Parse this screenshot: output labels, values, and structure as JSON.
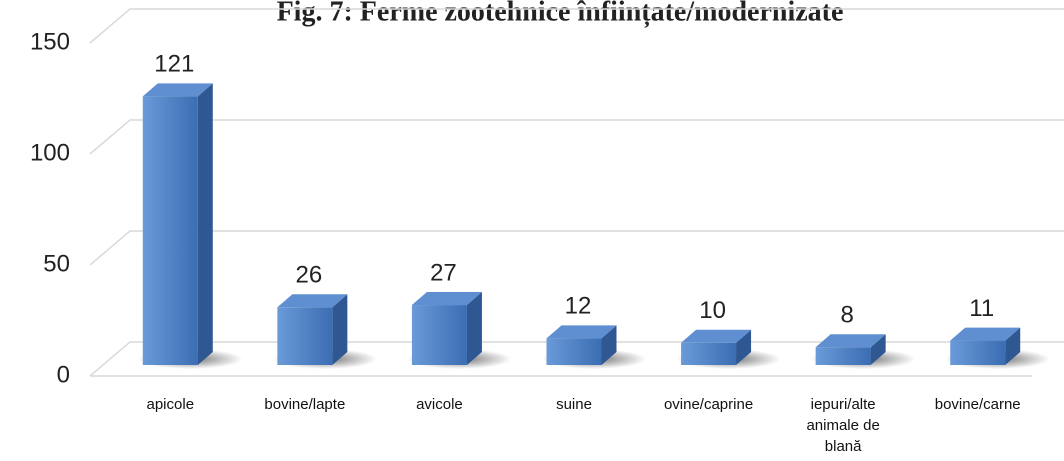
{
  "chart_data": {
    "type": "bar3d",
    "title": "Fig. 7: Ferme zootehnice înființate/modernizate",
    "categories": [
      "apicole",
      "bovine/lapte",
      "avicole",
      "suine",
      "ovine/caprine",
      "iepuri/alte animale de blană",
      "bovine/carne"
    ],
    "values": [
      121,
      26,
      27,
      12,
      10,
      8,
      11
    ],
    "color": "#4a7ec4",
    "ylim": [
      0,
      150
    ],
    "yticks": [
      0,
      50,
      100,
      150
    ],
    "grid": true
  }
}
